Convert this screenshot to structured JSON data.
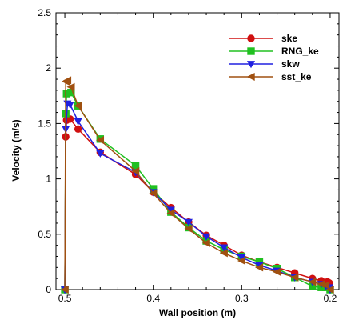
{
  "chart_data": {
    "type": "line",
    "title": "",
    "xlabel": "Wall position (m)",
    "ylabel": "Velocity (m/s)",
    "xlim": [
      0.51,
      0.19
    ],
    "ylim": [
      0,
      2.5
    ],
    "x_ticks": [
      0.5,
      0.4,
      0.3,
      0.2
    ],
    "x_tick_labels": [
      "0.5",
      "0.4",
      "0.3",
      "0.2"
    ],
    "y_ticks": [
      0,
      0.5,
      1,
      1.5,
      2,
      2.5
    ],
    "y_tick_labels": [
      "0",
      "0.5",
      "1",
      "1.5",
      "2",
      "2.5"
    ],
    "grid": false,
    "legend_position": "top-right",
    "series": [
      {
        "name": "ske",
        "color": "#d01010",
        "marker": "circle",
        "x": [
          0.5,
          0.499,
          0.498,
          0.494,
          0.485,
          0.46,
          0.42,
          0.4,
          0.38,
          0.36,
          0.34,
          0.32,
          0.3,
          0.28,
          0.26,
          0.24,
          0.22,
          0.21,
          0.203,
          0.201,
          0.2
        ],
        "y": [
          0.0,
          1.38,
          1.53,
          1.54,
          1.45,
          1.24,
          1.04,
          0.88,
          0.74,
          0.61,
          0.49,
          0.4,
          0.31,
          0.25,
          0.2,
          0.15,
          0.1,
          0.08,
          0.07,
          0.06,
          0.0
        ]
      },
      {
        "name": "RNG_ke",
        "color": "#20c020",
        "marker": "square",
        "x": [
          0.5,
          0.499,
          0.498,
          0.493,
          0.485,
          0.46,
          0.42,
          0.4,
          0.38,
          0.36,
          0.34,
          0.32,
          0.3,
          0.28,
          0.26,
          0.24,
          0.22,
          0.21,
          0.205,
          0.2
        ],
        "y": [
          0.0,
          1.59,
          1.77,
          1.78,
          1.66,
          1.36,
          1.12,
          0.91,
          0.7,
          0.56,
          0.44,
          0.36,
          0.3,
          0.25,
          0.19,
          0.11,
          0.03,
          0.02,
          0.02,
          0.0
        ]
      },
      {
        "name": "skw",
        "color": "#2020e0",
        "marker": "triangle-down",
        "x": [
          0.5,
          0.499,
          0.497,
          0.494,
          0.485,
          0.46,
          0.42,
          0.4,
          0.38,
          0.36,
          0.34,
          0.32,
          0.3,
          0.28,
          0.26,
          0.24,
          0.22,
          0.21,
          0.205,
          0.201,
          0.2
        ],
        "y": [
          0.0,
          1.45,
          1.68,
          1.67,
          1.52,
          1.23,
          1.06,
          0.88,
          0.72,
          0.61,
          0.48,
          0.38,
          0.29,
          0.22,
          0.17,
          0.11,
          0.07,
          0.05,
          0.03,
          0.02,
          0.0
        ]
      },
      {
        "name": "sst_ke",
        "color": "#a05010",
        "marker": "triangle-left",
        "x": [
          0.5,
          0.499,
          0.497,
          0.493,
          0.485,
          0.46,
          0.42,
          0.4,
          0.38,
          0.36,
          0.34,
          0.32,
          0.3,
          0.28,
          0.26,
          0.24,
          0.22,
          0.21,
          0.205,
          0.2
        ],
        "y": [
          0.0,
          1.88,
          1.89,
          1.83,
          1.66,
          1.35,
          1.07,
          0.87,
          0.69,
          0.55,
          0.42,
          0.33,
          0.26,
          0.2,
          0.16,
          0.11,
          0.07,
          0.05,
          0.04,
          0.0
        ]
      }
    ]
  }
}
